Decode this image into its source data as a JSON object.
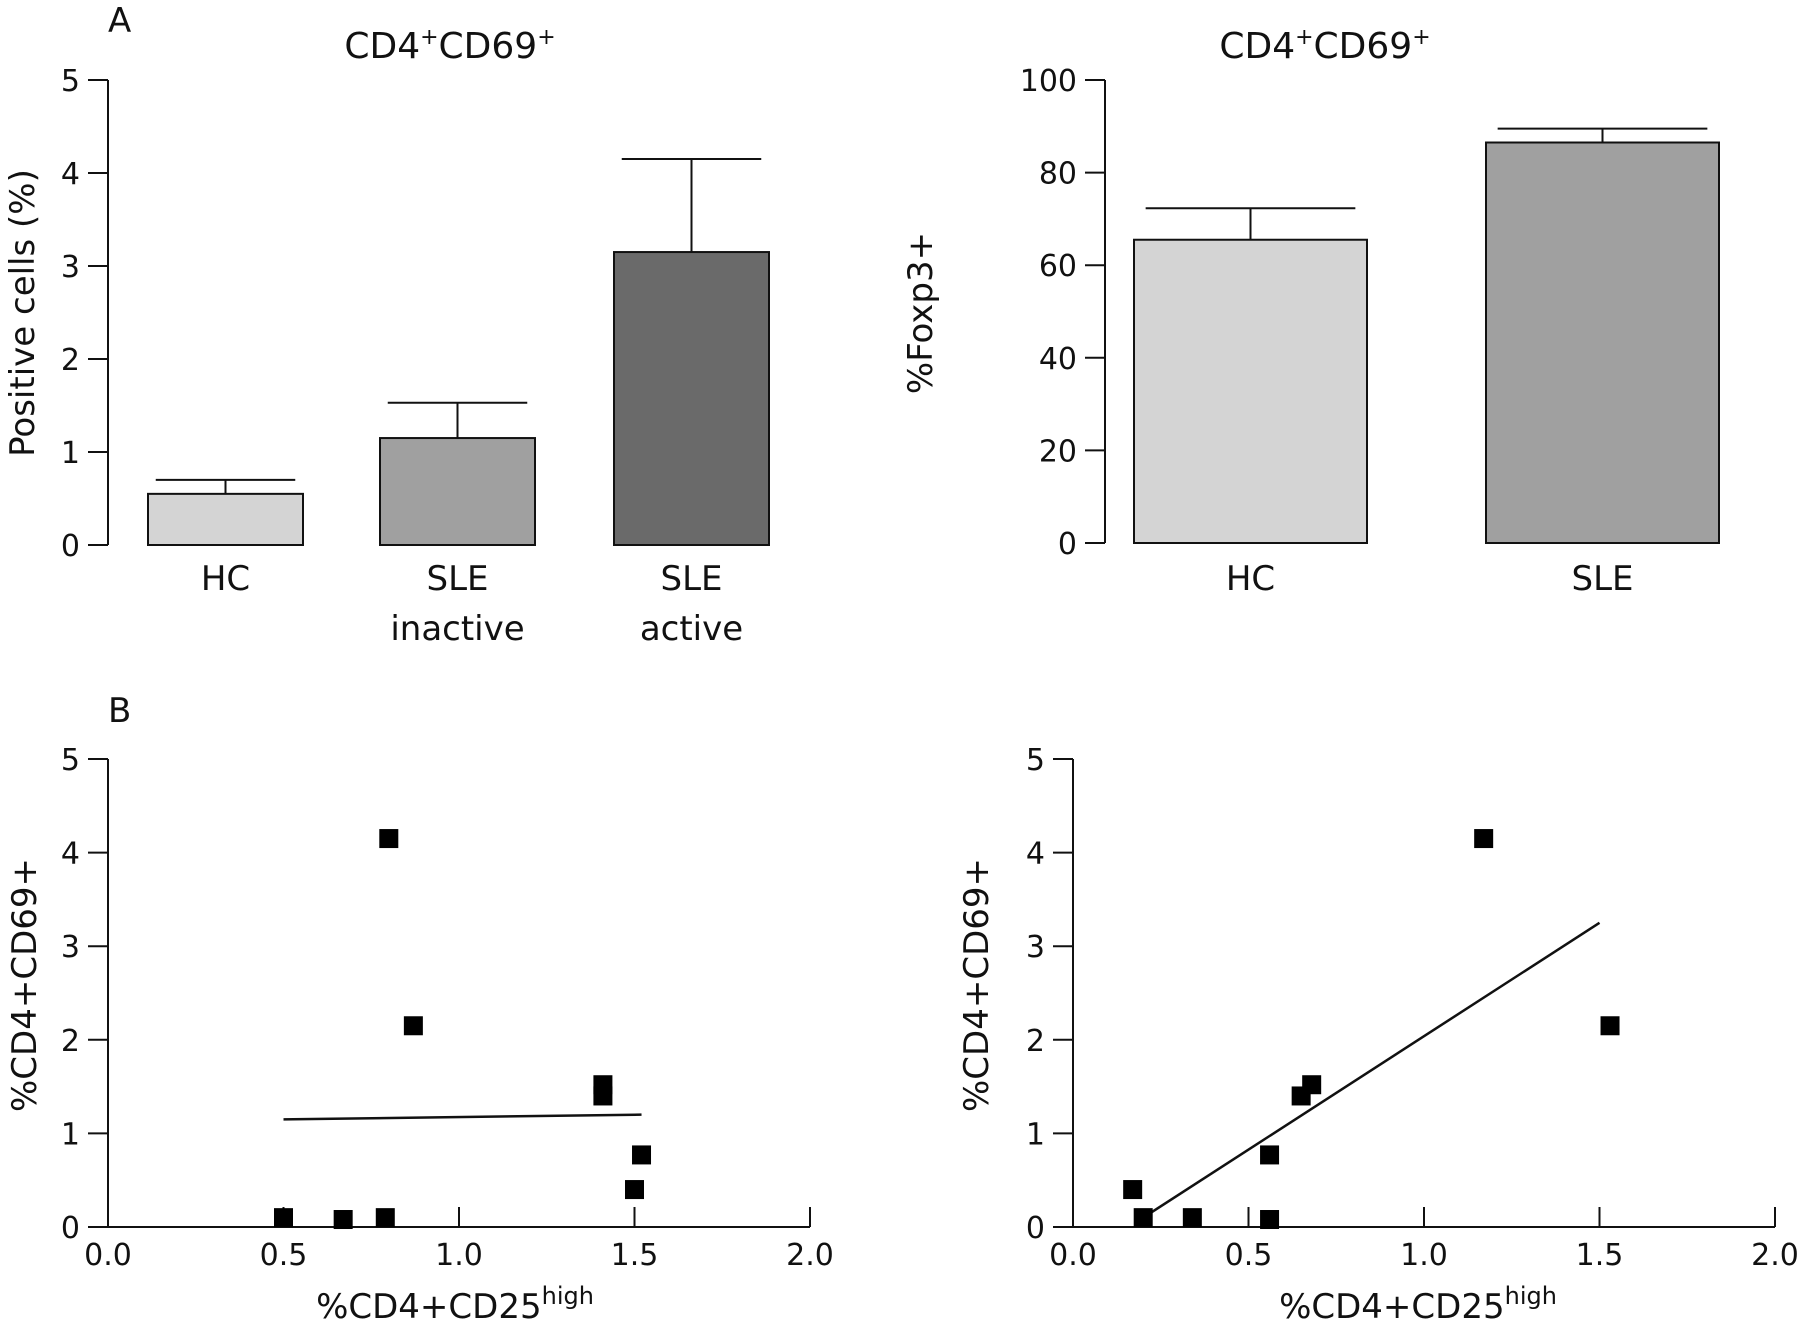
{
  "panel_labels": {
    "a": "A",
    "b": "B"
  },
  "chart_data": [
    {
      "id": "bar1",
      "type": "bar",
      "title_main": "CD4",
      "title_sup1": "+",
      "title_mid": "CD69",
      "title_sup2": "+",
      "ylabel": "Positive cells (%)",
      "ylim": [
        0,
        5
      ],
      "yticks": [
        "0",
        "1",
        "2",
        "3",
        "4",
        "5"
      ],
      "categories": [
        {
          "line1": "HC",
          "line2": ""
        },
        {
          "line1": "SLE",
          "line2": "inactive"
        },
        {
          "line1": "SLE",
          "line2": "active"
        }
      ],
      "values": [
        0.55,
        1.15,
        3.15
      ],
      "errors": [
        0.15,
        0.38,
        1.0
      ],
      "colors": [
        "#d4d4d4",
        "#a0a0a0",
        "#6a6a6a"
      ],
      "grid": false
    },
    {
      "id": "bar2",
      "type": "bar",
      "title_main": "CD4",
      "title_sup1": "+",
      "title_mid": "CD69",
      "title_sup2": "+",
      "ylabel": "%Foxp3+",
      "ylim": [
        0,
        100
      ],
      "yticks": [
        "0",
        "20",
        "40",
        "60",
        "80",
        "100"
      ],
      "categories": [
        {
          "line1": "HC",
          "line2": ""
        },
        {
          "line1": "SLE",
          "line2": ""
        }
      ],
      "values": [
        65.5,
        86.5
      ],
      "errors": [
        6.8,
        3.0
      ],
      "colors": [
        "#d4d4d4",
        "#a0a0a0"
      ],
      "grid": false
    },
    {
      "id": "scatter1",
      "type": "scatter",
      "ylabel": "%CD4+CD69+",
      "xlabel_main": "%CD4+CD25",
      "xlabel_sup": "high",
      "xlim": [
        0,
        2
      ],
      "ylim": [
        0,
        5
      ],
      "xticks": [
        "0.0",
        "0.5",
        "1.0",
        "1.5",
        "2.0"
      ],
      "yticks": [
        "0",
        "1",
        "2",
        "3",
        "4",
        "5"
      ],
      "points": [
        [
          0.8,
          4.15
        ],
        [
          0.87,
          2.15
        ],
        [
          1.41,
          1.52
        ],
        [
          1.41,
          1.4
        ],
        [
          1.52,
          0.77
        ],
        [
          1.5,
          0.4
        ],
        [
          0.5,
          0.1
        ],
        [
          0.67,
          0.08
        ],
        [
          0.79,
          0.1
        ]
      ],
      "fit": [
        [
          0.5,
          1.15
        ],
        [
          1.52,
          1.2
        ]
      ],
      "grid": false
    },
    {
      "id": "scatter2",
      "type": "scatter",
      "ylabel": "%CD4+CD69+",
      "xlabel_main": "%CD4+CD25",
      "xlabel_sup": "high",
      "xlim": [
        0,
        2
      ],
      "ylim": [
        0,
        5
      ],
      "xticks": [
        "0.0",
        "0.5",
        "1.0",
        "1.5",
        "2.0"
      ],
      "yticks": [
        "0",
        "1",
        "2",
        "3",
        "4",
        "5"
      ],
      "points": [
        [
          1.17,
          4.15
        ],
        [
          1.53,
          2.15
        ],
        [
          0.68,
          1.52
        ],
        [
          0.65,
          1.4
        ],
        [
          0.56,
          0.77
        ],
        [
          0.17,
          0.4
        ],
        [
          0.2,
          0.1
        ],
        [
          0.34,
          0.1
        ],
        [
          0.56,
          0.08
        ]
      ],
      "fit": [
        [
          0.2,
          0.1
        ],
        [
          1.5,
          3.25
        ]
      ],
      "grid": false
    }
  ]
}
